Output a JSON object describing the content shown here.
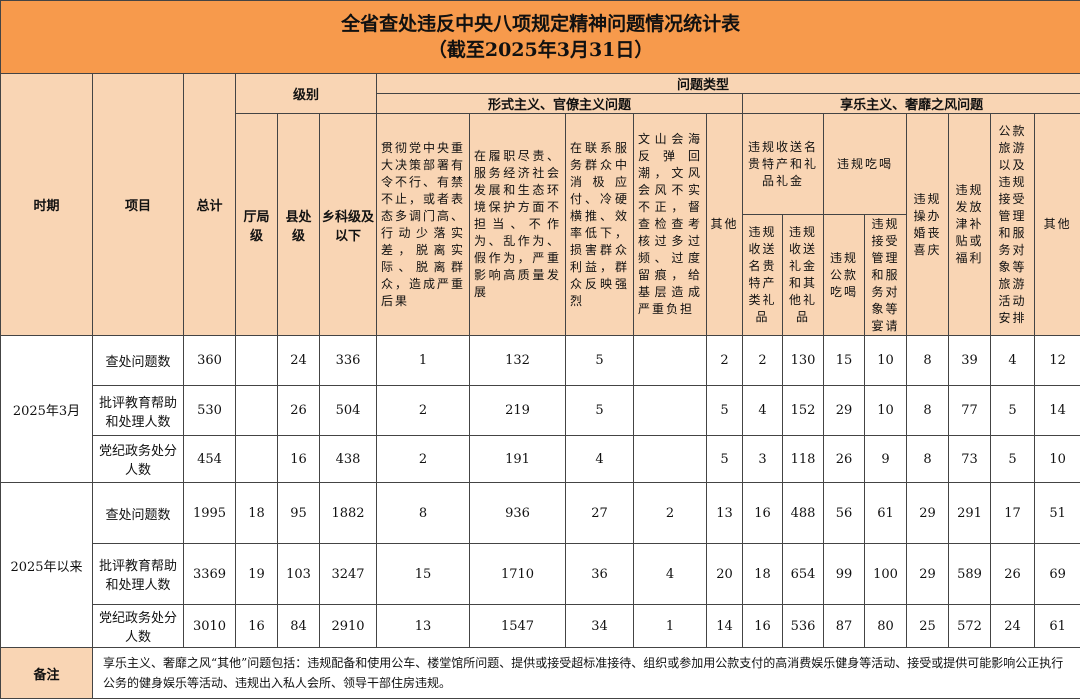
{
  "title": "全省查处违反中央八项规定精神问题情况统计表",
  "subtitle": "（截至2025年3月31日）",
  "headers": {
    "period": "时期",
    "item": "项目",
    "total": "总计",
    "level": "级别",
    "levels": [
      "厅局级",
      "县处级",
      "乡科级及以下"
    ],
    "problem_type": "问题类型",
    "formalism": "形式主义、官僚主义问题",
    "formalism_cols": [
      "贯彻党中央重大决策部署有令不行、有禁不止，或者表态多调门高、行动少落实差，脱离实际、脱离群众，造成严重后果",
      "在履职尽责、服务经济社会发展和生态环境保护方面不担当、不作为、乱作为、假作为，严重影响高质量发展",
      "在联系服务群众中消极应付、冷硬横推、效率低下，损害群众利益，群众反映强烈",
      "文山会海反弹回潮，文风会风不实不正，督查检查考核过多过频、过度留痕，给基层造成严重负担",
      "其他"
    ],
    "hedonism": "享乐主义、奢靡之风问题",
    "gifts": "违规收送名贵特产和礼品礼金",
    "gifts_sub": [
      "违规收送名贵特产类礼品",
      "违规收送礼金和其他礼品"
    ],
    "dining": "违规吃喝",
    "dining_sub": [
      "违规公款吃喝",
      "违规接受管理和服务对象等宴请"
    ],
    "hedonism_cols": [
      "违规操办婚丧喜庆",
      "违规发放津补贴或福利",
      "公款旅游以及违规接受管理和服务对象等旅游活动安排",
      "其他"
    ]
  },
  "groups": [
    {
      "period": "2025年3月",
      "rows": [
        {
          "item": "查处问题数",
          "values": [
            "360",
            "",
            "24",
            "336",
            "1",
            "132",
            "5",
            "",
            "2",
            "2",
            "130",
            "15",
            "10",
            "8",
            "39",
            "4",
            "12"
          ]
        },
        {
          "item": "批评教育帮助和处理人数",
          "values": [
            "530",
            "",
            "26",
            "504",
            "2",
            "219",
            "5",
            "",
            "5",
            "4",
            "152",
            "29",
            "10",
            "8",
            "77",
            "5",
            "14"
          ]
        },
        {
          "item": "党纪政务处分人数",
          "values": [
            "454",
            "",
            "16",
            "438",
            "2",
            "191",
            "4",
            "",
            "5",
            "3",
            "118",
            "26",
            "9",
            "8",
            "73",
            "5",
            "10"
          ]
        }
      ]
    },
    {
      "period": "2025年以来",
      "rows": [
        {
          "item": "查处问题数",
          "values": [
            "1995",
            "18",
            "95",
            "1882",
            "8",
            "936",
            "27",
            "2",
            "13",
            "16",
            "488",
            "56",
            "61",
            "29",
            "291",
            "17",
            "51"
          ]
        },
        {
          "item": "批评教育帮助和处理人数",
          "values": [
            "3369",
            "19",
            "103",
            "3247",
            "15",
            "1710",
            "36",
            "4",
            "20",
            "18",
            "654",
            "99",
            "100",
            "29",
            "589",
            "26",
            "69"
          ]
        },
        {
          "item": "党纪政务处分人数",
          "values": [
            "3010",
            "16",
            "84",
            "2910",
            "13",
            "1547",
            "34",
            "1",
            "14",
            "16",
            "536",
            "87",
            "80",
            "25",
            "572",
            "24",
            "61"
          ]
        }
      ]
    }
  ],
  "note_label": "备注",
  "note": "享乐主义、奢靡之风“其他”问题包括：违规配备和使用公车、楼堂馆所问题、提供或接受超标准接待、组织或参加用公款支付的高消费娱乐健身等活动、接受或提供可能影响公正执行公务的健身娱乐等活动、违规出入私人会所、领导干部住房违规。"
}
